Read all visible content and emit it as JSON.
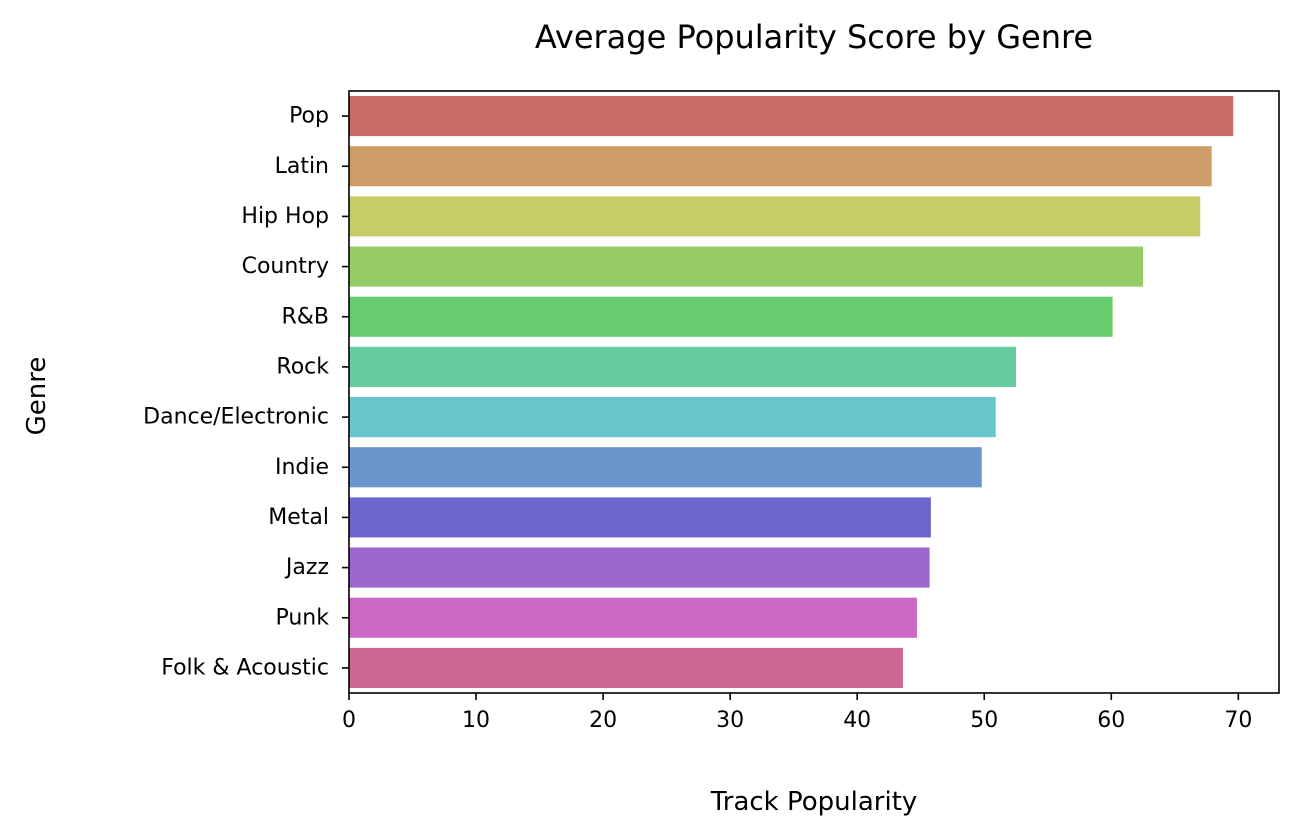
{
  "chart_data": {
    "type": "bar",
    "orientation": "horizontal",
    "title": "Average Popularity Score by Genre",
    "xlabel": "Track Popularity",
    "ylabel": "Genre",
    "xlim": [
      0,
      73.2
    ],
    "xticks": [
      0,
      10,
      20,
      30,
      40,
      50,
      60,
      70
    ],
    "grid": false,
    "categories": [
      "Pop",
      "Latin",
      "Hip Hop",
      "Country",
      "R&B",
      "Rock",
      "Dance/Electronic",
      "Indie",
      "Metal",
      "Jazz",
      "Punk",
      "Folk & Acoustic"
    ],
    "values": [
      69.6,
      67.9,
      67.0,
      62.5,
      60.1,
      52.5,
      50.9,
      49.8,
      45.8,
      45.7,
      44.7,
      43.6
    ],
    "colors": [
      "#ca6d67",
      "#cc9d67",
      "#c6cc68",
      "#95cc67",
      "#67cc6d",
      "#67cca0",
      "#67c6cc",
      "#6795cc",
      "#6d67cc",
      "#9d67cc",
      "#cc67c6",
      "#cc6795"
    ]
  }
}
